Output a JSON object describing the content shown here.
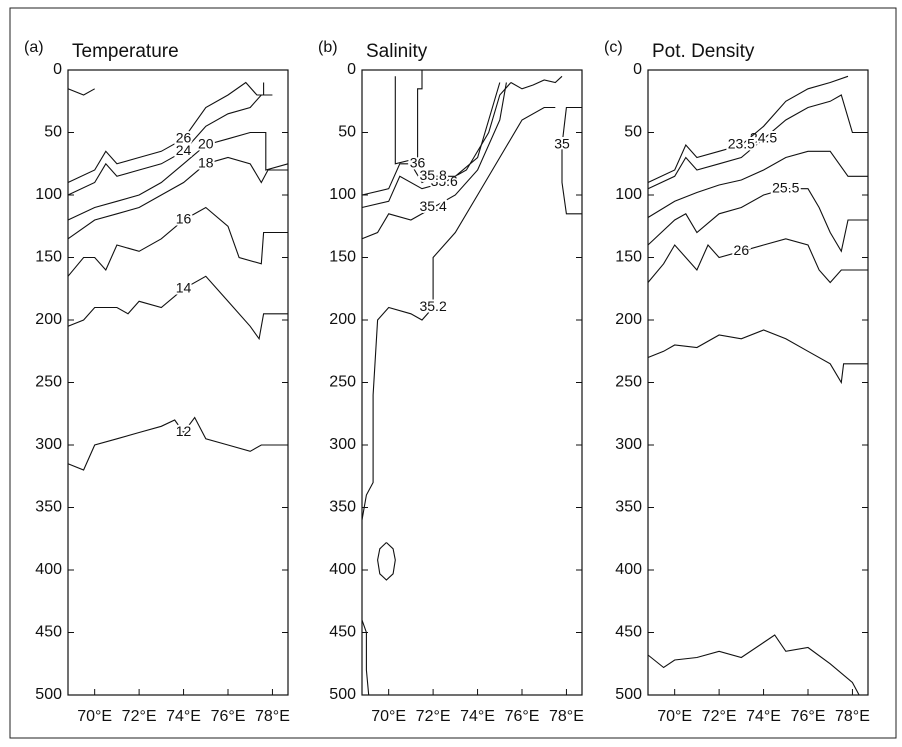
{
  "chart_data": [
    {
      "type": "contour",
      "panel_label": "(a)",
      "title": "Temperature",
      "xlim": [
        68.8,
        78.7
      ],
      "ylim": [
        500,
        0
      ],
      "xticks": [
        {
          "value": 70,
          "label": "70°E"
        },
        {
          "value": 72,
          "label": "72°E"
        },
        {
          "value": 74,
          "label": "74°E"
        },
        {
          "value": 76,
          "label": "76°E"
        },
        {
          "value": 78,
          "label": "78°E"
        }
      ],
      "yticks": [
        0,
        50,
        100,
        150,
        200,
        250,
        300,
        350,
        400,
        450,
        500
      ],
      "contours": [
        {
          "label": "12",
          "x": [
            68.8,
            69.5,
            70,
            71,
            72,
            73,
            73.6,
            74,
            74.5,
            75,
            76,
            77,
            77.5,
            78.7
          ],
          "y": [
            315,
            320,
            300,
            295,
            290,
            285,
            280,
            290,
            278,
            295,
            300,
            305,
            300,
            300
          ]
        },
        {
          "label": "14",
          "x": [
            68.8,
            69.5,
            70,
            71,
            71.5,
            72,
            73,
            74,
            75,
            76,
            77,
            77.4,
            77.6,
            78.7
          ],
          "y": [
            205,
            200,
            190,
            190,
            195,
            185,
            190,
            175,
            165,
            185,
            205,
            215,
            195,
            195
          ]
        },
        {
          "label": "16",
          "x": [
            68.8,
            69.5,
            70,
            70.5,
            71,
            72,
            73,
            74,
            75,
            76,
            76.5,
            77.5,
            77.6,
            78.7
          ],
          "y": [
            165,
            150,
            150,
            160,
            140,
            145,
            135,
            120,
            110,
            125,
            150,
            155,
            130,
            130
          ]
        },
        {
          "label": "18",
          "x": [
            68.8,
            70,
            71,
            72,
            73,
            74,
            75,
            76,
            77,
            77.5,
            77.8,
            78.7
          ],
          "y": [
            135,
            120,
            115,
            110,
            100,
            90,
            75,
            70,
            75,
            90,
            80,
            80
          ]
        },
        {
          "label": "20",
          "bold": true,
          "x": [
            68.8,
            70,
            71,
            72,
            73,
            74,
            75,
            76,
            77,
            77.7,
            77.7,
            78.7
          ],
          "y": [
            120,
            110,
            105,
            100,
            90,
            75,
            60,
            55,
            50,
            50,
            80,
            75
          ]
        },
        {
          "label": "24",
          "x": [
            68.8,
            70,
            70.5,
            71,
            72,
            73,
            74,
            75,
            76,
            77,
            77.5,
            78
          ],
          "y": [
            100,
            90,
            75,
            85,
            80,
            75,
            65,
            45,
            35,
            30,
            20,
            20
          ]
        },
        {
          "label": "26",
          "x": [
            68.8,
            70,
            70.5,
            71,
            72,
            73,
            74,
            75,
            76,
            76.8,
            77.3,
            77.6,
            77.6
          ],
          "y": [
            90,
            80,
            65,
            75,
            70,
            65,
            55,
            30,
            20,
            10,
            20,
            20,
            10
          ]
        },
        {
          "x": [
            68.8,
            69.5,
            70
          ],
          "y": [
            15,
            20,
            15
          ]
        }
      ]
    },
    {
      "type": "contour",
      "panel_label": "(b)",
      "title": "Salinity",
      "xlim": [
        68.8,
        78.7
      ],
      "ylim": [
        500,
        0
      ],
      "xticks": [
        {
          "value": 70,
          "label": "70°E"
        },
        {
          "value": 72,
          "label": "72°E"
        },
        {
          "value": 74,
          "label": "74°E"
        },
        {
          "value": 76,
          "label": "76°E"
        },
        {
          "value": 78,
          "label": "78°E"
        }
      ],
      "yticks": [
        0,
        50,
        100,
        150,
        200,
        250,
        300,
        350,
        400,
        450,
        500
      ],
      "contours": [
        {
          "label": "35.2",
          "x": [
            68.8,
            69,
            69.3,
            69.3,
            69.5,
            70,
            71,
            71.5,
            72,
            72,
            73,
            74,
            75,
            76,
            77,
            77.5
          ],
          "y": [
            360,
            340,
            330,
            260,
            200,
            190,
            195,
            200,
            190,
            150,
            130,
            100,
            70,
            40,
            30,
            30
          ]
        },
        {
          "label": "35.4",
          "x": [
            68.8,
            69.5,
            70,
            71,
            72,
            73,
            74,
            75,
            75.3
          ],
          "y": [
            135,
            130,
            115,
            120,
            110,
            100,
            80,
            40,
            10
          ]
        },
        {
          "label": "35.6",
          "x": [
            68.8,
            70,
            70.5,
            71.5,
            72.5,
            73.5,
            74.5,
            75,
            75.5
          ],
          "y": [
            110,
            105,
            85,
            95,
            90,
            80,
            50,
            20,
            10
          ]
        },
        {
          "label": "35.8",
          "x": [
            68.8,
            70,
            70.5,
            71,
            71.5,
            72,
            73,
            74,
            74.5,
            75
          ],
          "y": [
            100,
            95,
            75,
            75,
            90,
            85,
            85,
            70,
            40,
            10
          ]
        },
        {
          "label": "36",
          "x": [
            70.3,
            70.3,
            71,
            71.3,
            71.3,
            71.5,
            71.5
          ],
          "y": [
            5,
            75,
            72,
            75,
            15,
            15,
            0
          ]
        },
        {
          "label": "35",
          "bold": true,
          "x": [
            78.7,
            78,
            77.8,
            77.8,
            78,
            78.7
          ],
          "y": [
            115,
            115,
            90,
            60,
            30,
            30
          ]
        },
        {
          "x": [
            69.9,
            70.2,
            70.3,
            70.2,
            69.9,
            69.6,
            69.5,
            69.6,
            69.9
          ],
          "y": [
            378,
            383,
            392,
            403,
            408,
            403,
            392,
            383,
            378
          ]
        },
        {
          "x": [
            68.8,
            69,
            69,
            69.1
          ],
          "y": [
            440,
            450,
            480,
            500
          ]
        },
        {
          "x": [
            75.5,
            76,
            76.5,
            77,
            77.5,
            77.8
          ],
          "y": [
            10,
            15,
            12,
            8,
            10,
            5
          ]
        }
      ]
    },
    {
      "type": "contour",
      "panel_label": "(c)",
      "title": "Pot. Density",
      "xlim": [
        68.8,
        78.7
      ],
      "ylim": [
        500,
        0
      ],
      "xticks": [
        {
          "value": 70,
          "label": "70°E"
        },
        {
          "value": 72,
          "label": "72°E"
        },
        {
          "value": 74,
          "label": "74°E"
        },
        {
          "value": 76,
          "label": "76°E"
        },
        {
          "value": 78,
          "label": "78°E"
        }
      ],
      "yticks": [
        0,
        50,
        100,
        150,
        200,
        250,
        300,
        350,
        400,
        450,
        500
      ],
      "contours": [
        {
          "bold": true,
          "x": [
            68.8,
            69.5,
            70,
            71,
            72,
            73,
            74,
            74.5,
            75,
            76,
            77,
            78,
            78.3
          ],
          "y": [
            468,
            478,
            472,
            470,
            465,
            470,
            458,
            452,
            465,
            462,
            475,
            490,
            500
          ]
        },
        {
          "x": [
            68.8,
            69.5,
            70,
            71,
            72,
            73,
            74,
            75,
            76,
            77,
            77.5,
            77.6,
            78.7
          ],
          "y": [
            230,
            225,
            220,
            222,
            212,
            215,
            208,
            215,
            225,
            235,
            250,
            235,
            235
          ]
        },
        {
          "label": "26",
          "x": [
            68.8,
            69.5,
            70,
            70.5,
            71,
            71.5,
            72,
            73,
            74,
            75,
            76,
            76.5,
            77,
            77.5,
            78.7
          ],
          "y": [
            170,
            155,
            140,
            150,
            160,
            140,
            150,
            145,
            140,
            135,
            140,
            160,
            170,
            160,
            160
          ]
        },
        {
          "label": "25.5",
          "x": [
            68.8,
            70,
            70.5,
            71,
            72,
            73,
            74,
            75,
            76,
            76.5,
            77,
            77.5,
            77.8,
            78.7
          ],
          "y": [
            140,
            120,
            115,
            130,
            115,
            110,
            100,
            95,
            95,
            110,
            130,
            145,
            120,
            120
          ]
        },
        {
          "bold": true,
          "x": [
            68.8,
            70,
            71,
            72,
            73,
            74,
            75,
            76,
            77,
            77.8,
            78.7
          ],
          "y": [
            118,
            105,
            98,
            92,
            88,
            80,
            70,
            65,
            65,
            85,
            85
          ]
        },
        {
          "label": "24.5",
          "x": [
            68.8,
            70,
            70.5,
            71,
            72,
            73,
            74,
            75,
            76,
            77,
            77.5,
            78,
            78.7
          ],
          "y": [
            95,
            85,
            70,
            80,
            75,
            70,
            55,
            40,
            30,
            25,
            20,
            50,
            50
          ]
        },
        {
          "label": "23.5",
          "x": [
            68.8,
            70,
            70.5,
            71,
            72,
            73,
            74,
            75,
            76,
            77,
            77.8
          ],
          "y": [
            90,
            80,
            60,
            70,
            65,
            60,
            45,
            25,
            15,
            10,
            5
          ]
        }
      ]
    }
  ]
}
